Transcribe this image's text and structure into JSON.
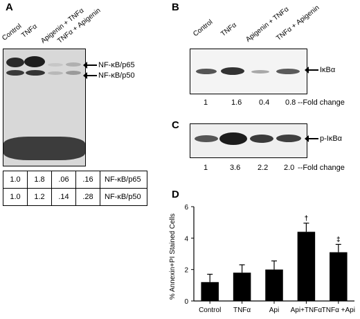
{
  "panel_a": {
    "letter": "A",
    "lanes": [
      "Control",
      "TNFα",
      "Apigenin + TNFα",
      "TNFα + Apigenin"
    ],
    "band_labels": [
      "NF-κB/p65",
      "NF-κB/p50"
    ],
    "table": {
      "rows": [
        {
          "values": [
            "1.0",
            "1.8",
            ".06",
            ".16"
          ],
          "name": "NF-κB/p65"
        },
        {
          "values": [
            "1.0",
            "1.2",
            ".14",
            ".28"
          ],
          "name": "NF-κB/p50"
        }
      ]
    }
  },
  "panel_b": {
    "letter": "B",
    "lanes": [
      "Control",
      "TNFα",
      "Apigenin + TNFα",
      "TNFα + Apigenin"
    ],
    "band_label": "IκBα",
    "folds": [
      "1",
      "1.6",
      "0.4",
      "0.8"
    ],
    "fold_suffix": "--Fold change"
  },
  "panel_c": {
    "letter": "C",
    "band_label": "p-IκBα",
    "folds": [
      "1",
      "3.6",
      "2.2",
      "2.0"
    ],
    "fold_suffix": "--Fold change"
  },
  "panel_d": {
    "letter": "D"
  },
  "chart_data": {
    "type": "bar",
    "categories": [
      "Control",
      "TNFα",
      "Api",
      "Api+TNFα",
      "TNFα +Api"
    ],
    "values": [
      1.2,
      1.8,
      2.0,
      4.4,
      3.1
    ],
    "errors": [
      0.5,
      0.5,
      0.55,
      0.55,
      0.5
    ],
    "markers": [
      "",
      "",
      "",
      "†",
      "‡"
    ],
    "ylabel": "% Annexin+PI Stained Cells",
    "xlabel": "",
    "ylim": [
      0,
      6
    ],
    "yticks": [
      0,
      2,
      4,
      6
    ],
    "bar_color": "#000000"
  }
}
